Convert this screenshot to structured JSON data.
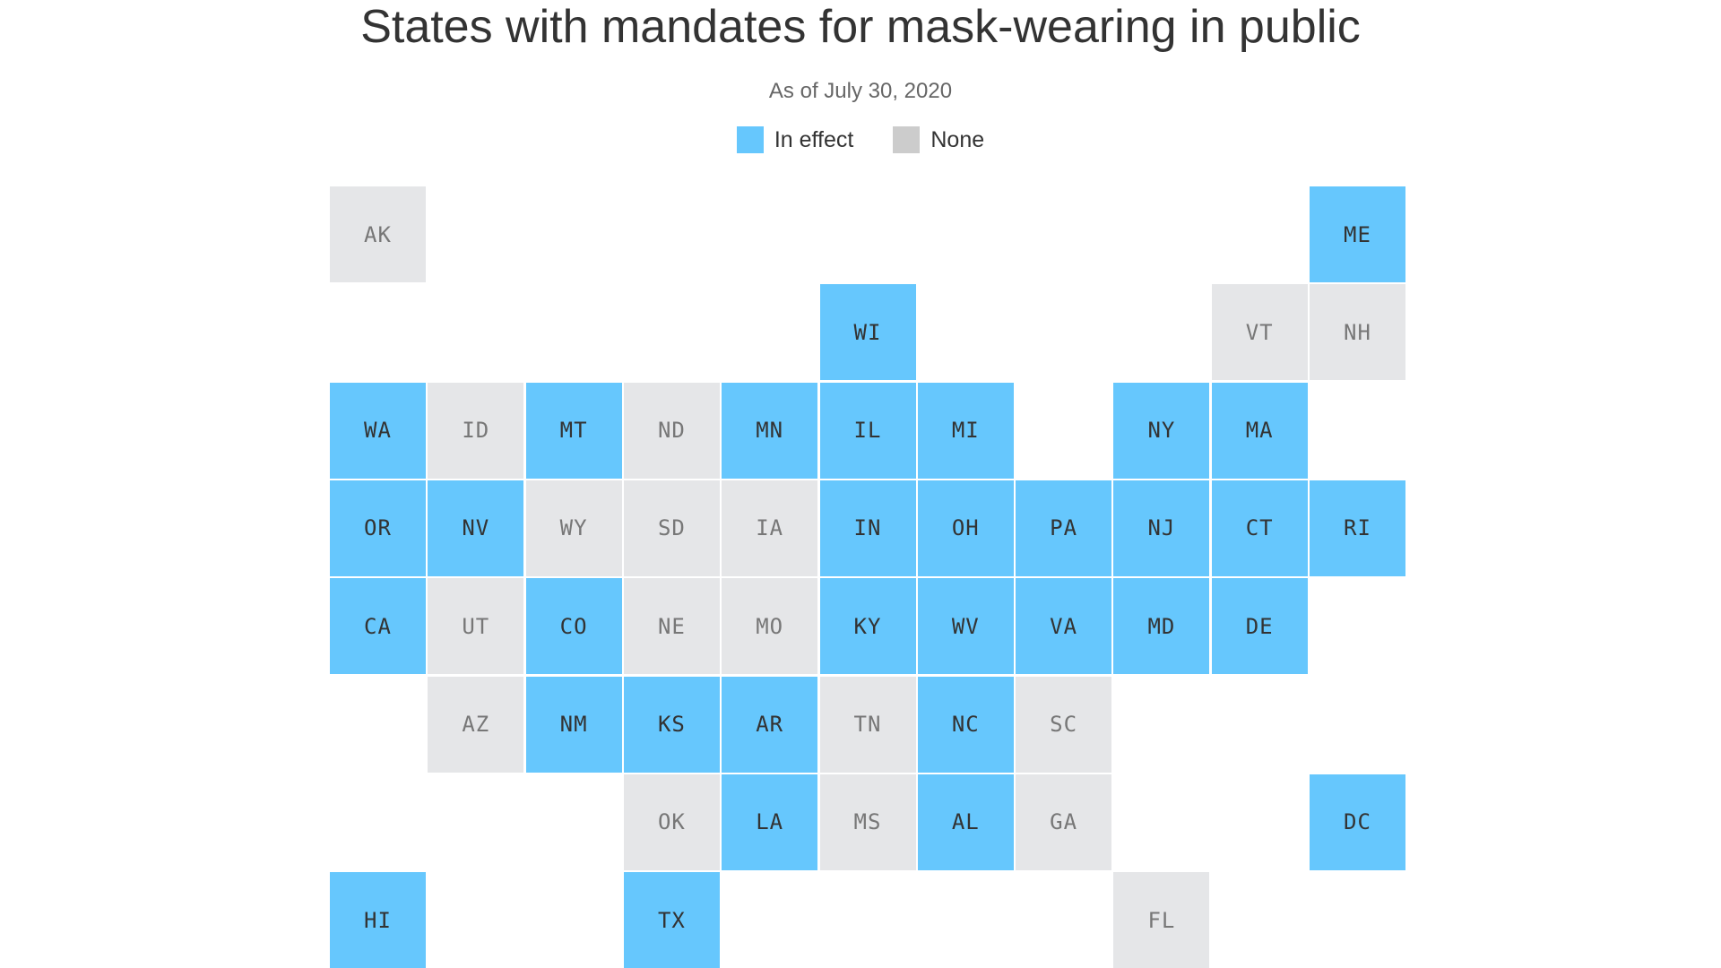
{
  "title": "States with mandates for mask-wearing in public",
  "subtitle": "As of July 30, 2020",
  "colors": {
    "in_effect": "#66c7fd",
    "none": "#e5e6e8",
    "legend_none": "#cccccc"
  },
  "legend": [
    {
      "label": "In effect",
      "status": "in_effect"
    },
    {
      "label": "None",
      "status": "none"
    }
  ],
  "tiles": [
    {
      "abbr": "AK",
      "status": "none",
      "row": 0,
      "col": 0
    },
    {
      "abbr": "ME",
      "status": "in_effect",
      "row": 0,
      "col": 10
    },
    {
      "abbr": "WI",
      "status": "in_effect",
      "row": 1,
      "col": 5
    },
    {
      "abbr": "VT",
      "status": "none",
      "row": 1,
      "col": 9
    },
    {
      "abbr": "NH",
      "status": "none",
      "row": 1,
      "col": 10
    },
    {
      "abbr": "WA",
      "status": "in_effect",
      "row": 2,
      "col": 0
    },
    {
      "abbr": "ID",
      "status": "none",
      "row": 2,
      "col": 1
    },
    {
      "abbr": "MT",
      "status": "in_effect",
      "row": 2,
      "col": 2
    },
    {
      "abbr": "ND",
      "status": "none",
      "row": 2,
      "col": 3
    },
    {
      "abbr": "MN",
      "status": "in_effect",
      "row": 2,
      "col": 4
    },
    {
      "abbr": "IL",
      "status": "in_effect",
      "row": 2,
      "col": 5
    },
    {
      "abbr": "MI",
      "status": "in_effect",
      "row": 2,
      "col": 6
    },
    {
      "abbr": "NY",
      "status": "in_effect",
      "row": 2,
      "col": 8
    },
    {
      "abbr": "MA",
      "status": "in_effect",
      "row": 2,
      "col": 9
    },
    {
      "abbr": "OR",
      "status": "in_effect",
      "row": 3,
      "col": 0
    },
    {
      "abbr": "NV",
      "status": "in_effect",
      "row": 3,
      "col": 1
    },
    {
      "abbr": "WY",
      "status": "none",
      "row": 3,
      "col": 2
    },
    {
      "abbr": "SD",
      "status": "none",
      "row": 3,
      "col": 3
    },
    {
      "abbr": "IA",
      "status": "none",
      "row": 3,
      "col": 4
    },
    {
      "abbr": "IN",
      "status": "in_effect",
      "row": 3,
      "col": 5
    },
    {
      "abbr": "OH",
      "status": "in_effect",
      "row": 3,
      "col": 6
    },
    {
      "abbr": "PA",
      "status": "in_effect",
      "row": 3,
      "col": 7
    },
    {
      "abbr": "NJ",
      "status": "in_effect",
      "row": 3,
      "col": 8
    },
    {
      "abbr": "CT",
      "status": "in_effect",
      "row": 3,
      "col": 9
    },
    {
      "abbr": "RI",
      "status": "in_effect",
      "row": 3,
      "col": 10
    },
    {
      "abbr": "CA",
      "status": "in_effect",
      "row": 4,
      "col": 0
    },
    {
      "abbr": "UT",
      "status": "none",
      "row": 4,
      "col": 1
    },
    {
      "abbr": "CO",
      "status": "in_effect",
      "row": 4,
      "col": 2
    },
    {
      "abbr": "NE",
      "status": "none",
      "row": 4,
      "col": 3
    },
    {
      "abbr": "MO",
      "status": "none",
      "row": 4,
      "col": 4
    },
    {
      "abbr": "KY",
      "status": "in_effect",
      "row": 4,
      "col": 5
    },
    {
      "abbr": "WV",
      "status": "in_effect",
      "row": 4,
      "col": 6
    },
    {
      "abbr": "VA",
      "status": "in_effect",
      "row": 4,
      "col": 7
    },
    {
      "abbr": "MD",
      "status": "in_effect",
      "row": 4,
      "col": 8
    },
    {
      "abbr": "DE",
      "status": "in_effect",
      "row": 4,
      "col": 9
    },
    {
      "abbr": "AZ",
      "status": "none",
      "row": 5,
      "col": 1
    },
    {
      "abbr": "NM",
      "status": "in_effect",
      "row": 5,
      "col": 2
    },
    {
      "abbr": "KS",
      "status": "in_effect",
      "row": 5,
      "col": 3
    },
    {
      "abbr": "AR",
      "status": "in_effect",
      "row": 5,
      "col": 4
    },
    {
      "abbr": "TN",
      "status": "none",
      "row": 5,
      "col": 5
    },
    {
      "abbr": "NC",
      "status": "in_effect",
      "row": 5,
      "col": 6
    },
    {
      "abbr": "SC",
      "status": "none",
      "row": 5,
      "col": 7
    },
    {
      "abbr": "OK",
      "status": "none",
      "row": 6,
      "col": 3
    },
    {
      "abbr": "LA",
      "status": "in_effect",
      "row": 6,
      "col": 4
    },
    {
      "abbr": "MS",
      "status": "none",
      "row": 6,
      "col": 5
    },
    {
      "abbr": "AL",
      "status": "in_effect",
      "row": 6,
      "col": 6
    },
    {
      "abbr": "GA",
      "status": "none",
      "row": 6,
      "col": 7
    },
    {
      "abbr": "DC",
      "status": "in_effect",
      "row": 6,
      "col": 10
    },
    {
      "abbr": "HI",
      "status": "in_effect",
      "row": 7,
      "col": 0
    },
    {
      "abbr": "TX",
      "status": "in_effect",
      "row": 7,
      "col": 3
    },
    {
      "abbr": "FL",
      "status": "none",
      "row": 7,
      "col": 8
    }
  ]
}
